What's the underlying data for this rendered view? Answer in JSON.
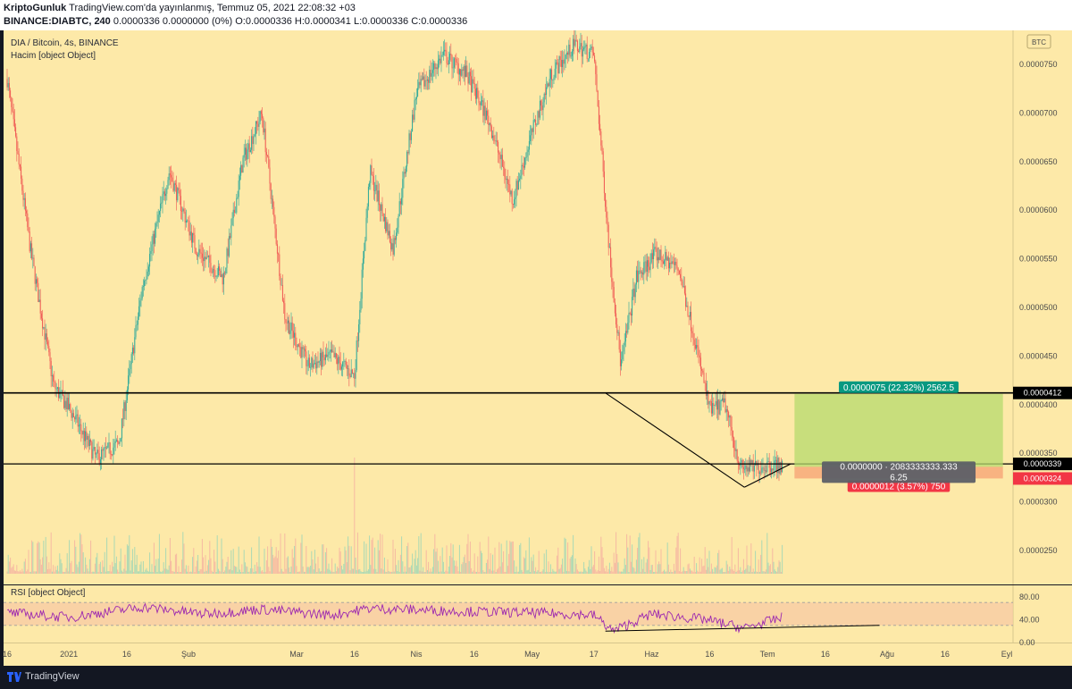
{
  "header": {
    "author": "KriptoGunluk",
    "published": "TradingView.com'da yayınlanmış, Temmuz 05, 2021 22:08:32 +03",
    "symbol": "BINANCE:DIABTC, 240",
    "ohlc": "0.0000336 0.0000000 (0%) O:0.0000336 H:0.0000341 L:0.0000336 C:0.0000336"
  },
  "legend": {
    "title": "DIA / Bitcoin, 4s, BINANCE",
    "volume": "Hacim [object Object]",
    "rsi": "RSI [object Object]"
  },
  "price_axis": {
    "currency": "BTC",
    "ticks": [
      "0.0000750",
      "0.0000700",
      "0.0000650",
      "0.0000600",
      "0.0000550",
      "0.0000500",
      "0.0000450",
      "0.0000400",
      "0.0000350",
      "0.0000300",
      "0.0000250"
    ],
    "badges": {
      "resistance": "0.0000412",
      "current": "0.0000339",
      "stop": "0.0000324"
    }
  },
  "rsi_axis": {
    "ticks": [
      "80.00",
      "40.00",
      "0.00"
    ]
  },
  "time_axis": {
    "labels": [
      "16",
      "2021",
      "16",
      "Şub",
      "Mar",
      "16",
      "Nis",
      "16",
      "May",
      "17",
      "Haz",
      "16",
      "Tem",
      "16",
      "Ağu",
      "16",
      "Eyl"
    ]
  },
  "position": {
    "target_label": "0.0000075 (22.32%) 2562.5",
    "stop_label": "0.0000012 (3.57%) 750",
    "info_label": "0.0000000 · 2083333333.333",
    "ratio_label": "6.25"
  },
  "colors": {
    "background": "#fde9a8",
    "up": "#26a69a",
    "down": "#ef5350",
    "rsi": "#9c27b0",
    "target": "#4caf50",
    "stop": "#f23645"
  },
  "footer": {
    "brand": "TradingView"
  },
  "chart_data": {
    "type": "candlestick",
    "title": "DIA / Bitcoin, 4s, BINANCE",
    "ylim": [
      2.15e-05,
      7.85e-05
    ],
    "x_range": [
      "2020-12-16",
      "2021-09-01"
    ],
    "price_path": [
      {
        "x": "2020-12-16",
        "y": 7.35e-05
      },
      {
        "x": "2020-12-22",
        "y": 5.6e-05
      },
      {
        "x": "2020-12-28",
        "y": 4.2e-05
      },
      {
        "x": "2021-01-02",
        "y": 3.9e-05
      },
      {
        "x": "2021-01-08",
        "y": 3.45e-05
      },
      {
        "x": "2021-01-14",
        "y": 3.6e-05
      },
      {
        "x": "2021-01-20",
        "y": 5.2e-05
      },
      {
        "x": "2021-01-27",
        "y": 6.4e-05
      },
      {
        "x": "2021-02-03",
        "y": 5.6e-05
      },
      {
        "x": "2021-02-10",
        "y": 5.3e-05
      },
      {
        "x": "2021-02-15",
        "y": 6.5e-05
      },
      {
        "x": "2021-02-20",
        "y": 7e-05
      },
      {
        "x": "2021-02-26",
        "y": 4.9e-05
      },
      {
        "x": "2021-03-04",
        "y": 4.4e-05
      },
      {
        "x": "2021-03-10",
        "y": 4.5e-05
      },
      {
        "x": "2021-03-16",
        "y": 4.3e-05
      },
      {
        "x": "2021-03-20",
        "y": 6.4e-05
      },
      {
        "x": "2021-03-26",
        "y": 5.6e-05
      },
      {
        "x": "2021-04-01",
        "y": 7.2e-05
      },
      {
        "x": "2021-04-08",
        "y": 7.6e-05
      },
      {
        "x": "2021-04-14",
        "y": 7.4e-05
      },
      {
        "x": "2021-04-20",
        "y": 6.9e-05
      },
      {
        "x": "2021-04-26",
        "y": 6.1e-05
      },
      {
        "x": "2021-05-01",
        "y": 6.8e-05
      },
      {
        "x": "2021-05-06",
        "y": 7.4e-05
      },
      {
        "x": "2021-05-12",
        "y": 7.7e-05
      },
      {
        "x": "2021-05-17",
        "y": 7.6e-05
      },
      {
        "x": "2021-05-21",
        "y": 5.6e-05
      },
      {
        "x": "2021-05-24",
        "y": 4.4e-05
      },
      {
        "x": "2021-05-28",
        "y": 5.3e-05
      },
      {
        "x": "2021-06-02",
        "y": 5.55e-05
      },
      {
        "x": "2021-06-08",
        "y": 5.4e-05
      },
      {
        "x": "2021-06-12",
        "y": 4.7e-05
      },
      {
        "x": "2021-06-16",
        "y": 3.95e-05
      },
      {
        "x": "2021-06-20",
        "y": 4e-05
      },
      {
        "x": "2021-06-24",
        "y": 3.35e-05
      },
      {
        "x": "2021-06-28",
        "y": 3.35e-05
      },
      {
        "x": "2021-07-02",
        "y": 3.39e-05
      },
      {
        "x": "2021-07-05",
        "y": 3.36e-05
      }
    ],
    "horizontal_lines": [
      4.12e-05,
      3.39e-05
    ],
    "trend_lines": [
      {
        "from": {
          "x": "2021-05-20",
          "y": 4.12e-05
        },
        "to": {
          "x": "2021-06-25",
          "y": 3.15e-05
        }
      },
      {
        "from": {
          "x": "2021-06-25",
          "y": 3.15e-05
        },
        "to": {
          "x": "2021-07-07",
          "y": 3.39e-05
        }
      }
    ],
    "long_position": {
      "start": "2021-07-08",
      "end": "2021-08-31",
      "entry": 3.36e-05,
      "target": 4.11e-05,
      "stop": 3.24e-05
    },
    "volume": {
      "max_spike": {
        "x": "2021-03-16",
        "value": 1.0
      }
    },
    "rsi": {
      "ylim": [
        0,
        100
      ],
      "bands": [
        30,
        70
      ],
      "path": [
        {
          "x": "2020-12-16",
          "y": 52
        },
        {
          "x": "2021-01-01",
          "y": 44
        },
        {
          "x": "2021-01-20",
          "y": 62
        },
        {
          "x": "2021-02-05",
          "y": 50
        },
        {
          "x": "2021-02-20",
          "y": 58
        },
        {
          "x": "2021-03-10",
          "y": 48
        },
        {
          "x": "2021-03-20",
          "y": 60
        },
        {
          "x": "2021-04-10",
          "y": 55
        },
        {
          "x": "2021-05-01",
          "y": 52
        },
        {
          "x": "2021-05-17",
          "y": 48
        },
        {
          "x": "2021-05-22",
          "y": 20
        },
        {
          "x": "2021-06-01",
          "y": 50
        },
        {
          "x": "2021-06-15",
          "y": 40
        },
        {
          "x": "2021-06-25",
          "y": 25
        },
        {
          "x": "2021-07-05",
          "y": 44
        }
      ],
      "trend_line": {
        "from": {
          "x": "2021-05-20",
          "y": 20
        },
        "to": {
          "x": "2021-07-30",
          "y": 30
        }
      }
    }
  }
}
